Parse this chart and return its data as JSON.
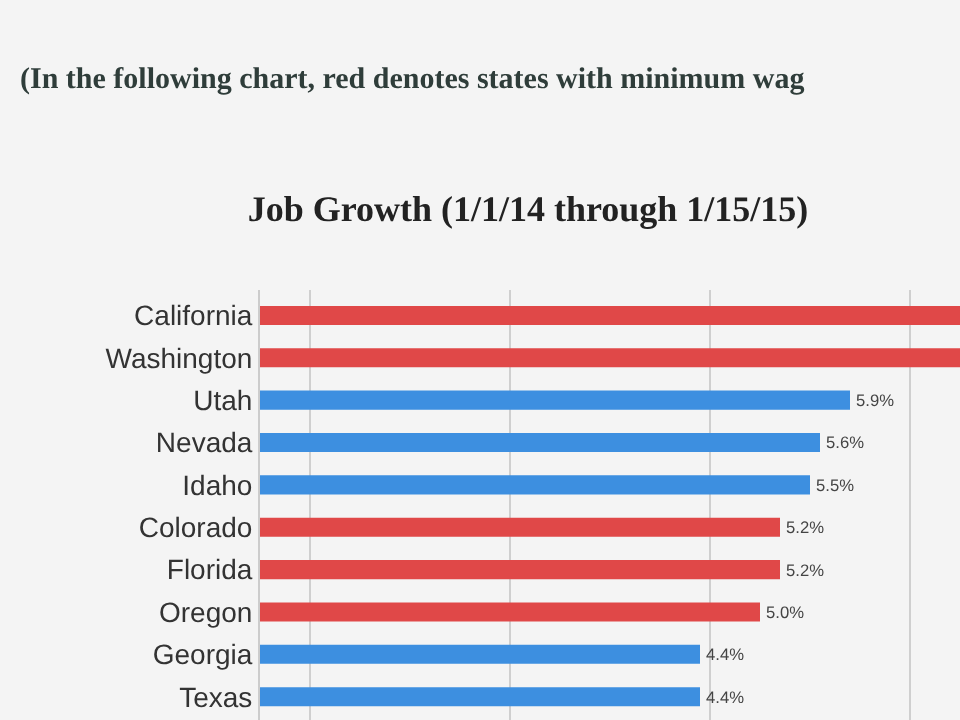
{
  "chart_data": {
    "type": "bar",
    "orientation": "horizontal",
    "title": "Job Growth (1/1/14 through 1/15/15)",
    "annotations": [
      "(In the following chart, red denotes states with minimum wag"
    ],
    "categories": [
      "California",
      "Washington",
      "Utah",
      "Nevada",
      "Idaho",
      "Colorado",
      "Florida",
      "Oregon",
      "Georgia",
      "Texas"
    ],
    "values": [
      7.0,
      7.0,
      5.9,
      5.6,
      5.5,
      5.2,
      5.2,
      5.0,
      4.4,
      4.4
    ],
    "value_labels": [
      null,
      null,
      "5.9%",
      "5.6%",
      "5.5%",
      "5.2%",
      "5.2%",
      "5.0%",
      "4.4%",
      "4.4%"
    ],
    "colors": [
      "#e04848",
      "#e04848",
      "#3d8fe0",
      "#3d8fe0",
      "#3d8fe0",
      "#e04848",
      "#e04848",
      "#e04848",
      "#3d8fe0",
      "#3d8fe0"
    ],
    "xlim": [
      0,
      7.0
    ],
    "xticks": [
      {
        "value": 0.5,
        "label": null
      },
      {
        "value": 2.5,
        "label": null
      },
      {
        "value": 4.5,
        "label": null
      },
      {
        "value": 6.5,
        "label": null
      }
    ],
    "grid": "x",
    "tick_labels": "y",
    "legend": false
  }
}
